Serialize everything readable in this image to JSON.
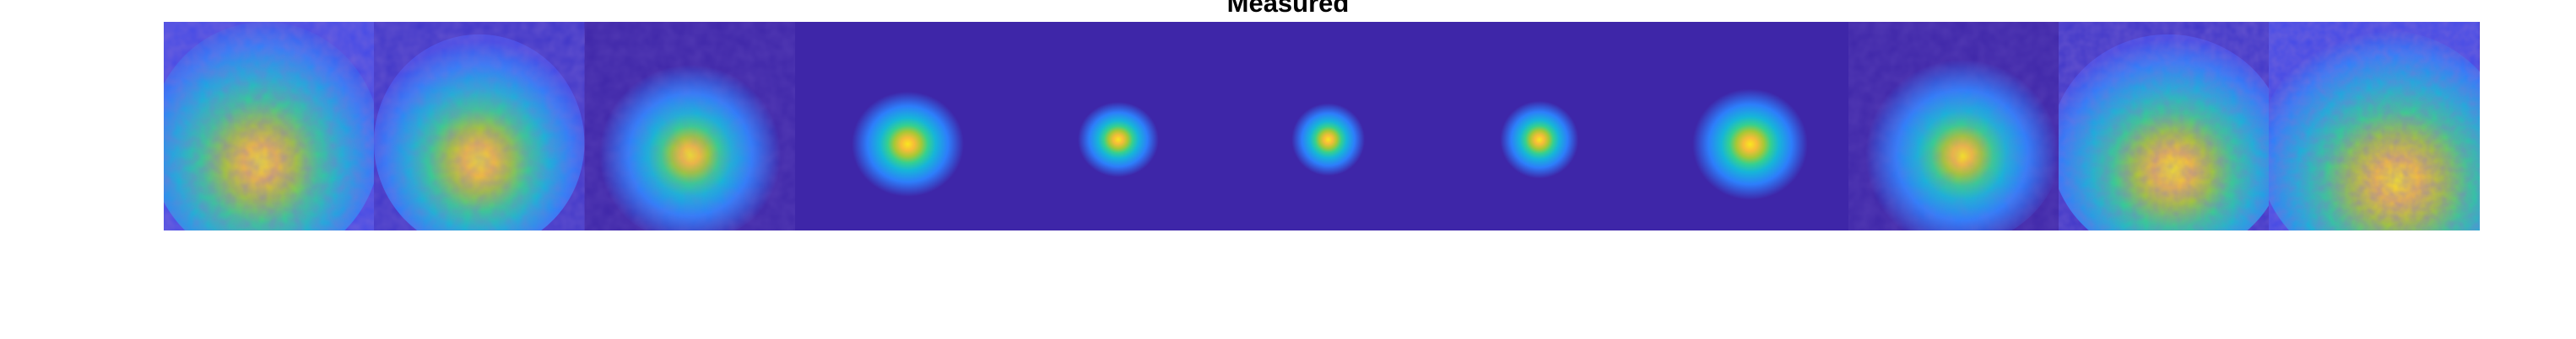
{
  "figure": {
    "title": "Measured"
  },
  "colors": {
    "background": "#3e26a8",
    "colormap": [
      "#3e26a8",
      "#4249e7",
      "#2d7efb",
      "#16b5d8",
      "#35d08f",
      "#a5c836",
      "#f6bc39",
      "#f9e71e"
    ]
  },
  "panels": [
    {
      "spread": 0.7,
      "noise": 0.9,
      "peak": 0.82
    },
    {
      "spread": 0.62,
      "noise": 0.8,
      "peak": 0.86
    },
    {
      "spread": 0.44,
      "noise": 0.45,
      "peak": 0.95
    },
    {
      "spread": 0.36,
      "noise": 0.3,
      "peak": 0.97
    },
    {
      "spread": 0.3,
      "noise": 0.2,
      "peak": 1.0
    },
    {
      "spread": 0.29,
      "noise": 0.18,
      "peak": 1.0
    },
    {
      "spread": 0.3,
      "noise": 0.2,
      "peak": 1.0
    },
    {
      "spread": 0.36,
      "noise": 0.3,
      "peak": 0.97
    },
    {
      "spread": 0.46,
      "noise": 0.45,
      "peak": 0.95
    },
    {
      "spread": 0.66,
      "noise": 0.85,
      "peak": 0.84
    },
    {
      "spread": 0.74,
      "noise": 1.0,
      "peak": 0.8
    }
  ]
}
